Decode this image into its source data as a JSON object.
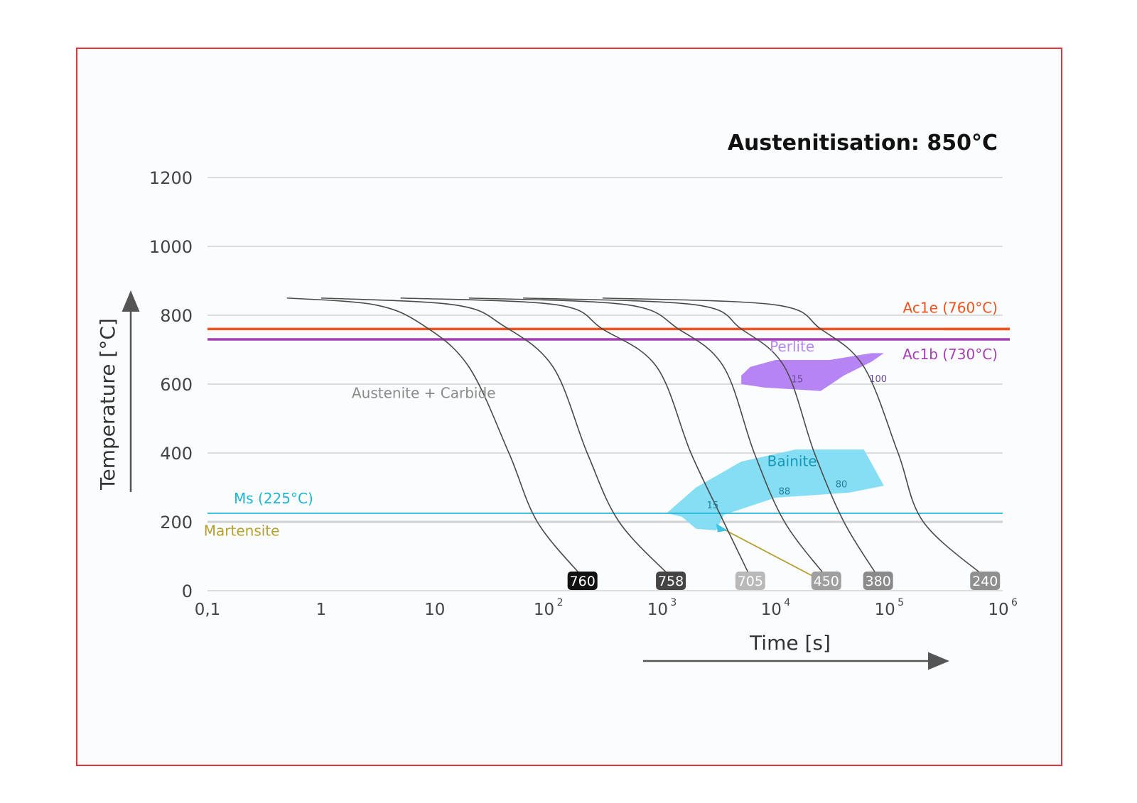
{
  "chart_data": {
    "type": "line",
    "subtype": "CCT diagram (continuous cooling transformation)",
    "title": "Austenitisation: 850°C",
    "xlabel": "Time [s]",
    "ylabel": "Temperature [°C]",
    "xscale": "log",
    "xlim": [
      0.1,
      1000000
    ],
    "ylim": [
      0,
      1200
    ],
    "xticks": [
      {
        "value": 0.1,
        "base": "0,1",
        "exp": ""
      },
      {
        "value": 1,
        "base": "1",
        "exp": ""
      },
      {
        "value": 10,
        "base": "10",
        "exp": ""
      },
      {
        "value": 100,
        "base": "10",
        "exp": "2"
      },
      {
        "value": 1000,
        "base": "10",
        "exp": "3"
      },
      {
        "value": 10000,
        "base": "10",
        "exp": "4"
      },
      {
        "value": 100000,
        "base": "10",
        "exp": "5"
      },
      {
        "value": 1000000,
        "base": "10",
        "exp": "6"
      }
    ],
    "yticks": [
      {
        "value": 0,
        "label": "0"
      },
      {
        "value": 200,
        "label": "200"
      },
      {
        "value": 400,
        "label": "400"
      },
      {
        "value": 600,
        "label": "600"
      },
      {
        "value": 800,
        "label": "800"
      },
      {
        "value": 1000,
        "label": "1000"
      },
      {
        "value": 1200,
        "label": "1200"
      }
    ],
    "grid": true,
    "reference_lines": [
      {
        "name": "Ac1e (760°C)",
        "y": 760,
        "color": "#f0531e"
      },
      {
        "name": "Ac1b (730°C)",
        "y": 730,
        "color": "#a63fb4"
      },
      {
        "name": "Ms (225°C)",
        "y": 225,
        "color": "#1fb6d6"
      }
    ],
    "region_labels": [
      {
        "text": "Austenite + Carbide",
        "x": 8,
        "y": 560,
        "color": "#8a8a8a"
      },
      {
        "text": "Martensite",
        "x": 0.2,
        "y": 160,
        "color": "#b5a032"
      },
      {
        "text": "Perlite",
        "x": 14000,
        "y": 695,
        "color": "#b788ee"
      },
      {
        "text": "Bainite",
        "x": 14000,
        "y": 362,
        "color": "#1597b5"
      }
    ],
    "phase_fields": [
      {
        "name": "Perlite",
        "color": "#b27ef2",
        "points": [
          [
            5000,
            625
          ],
          [
            6000,
            650
          ],
          [
            10000,
            670
          ],
          [
            30000,
            670
          ],
          [
            70000,
            690
          ],
          [
            90000,
            690
          ],
          [
            70000,
            665
          ],
          [
            40000,
            625
          ],
          [
            25000,
            580
          ],
          [
            8000,
            590
          ],
          [
            5000,
            600
          ]
        ],
        "marks": [
          {
            "text": "15",
            "x": 15500,
            "y": 615
          },
          {
            "text": "100",
            "x": 80000,
            "y": 617
          }
        ]
      },
      {
        "name": "Bainite",
        "color": "#7fdcf3",
        "points": [
          [
            1100,
            225
          ],
          [
            2000,
            300
          ],
          [
            5000,
            375
          ],
          [
            15000,
            410
          ],
          [
            60000,
            410
          ],
          [
            90000,
            305
          ],
          [
            45000,
            285
          ],
          [
            10000,
            270
          ],
          [
            3500,
            220
          ],
          [
            3000,
            175
          ],
          [
            2000,
            180
          ],
          [
            1500,
            215
          ]
        ],
        "marks": [
          {
            "text": "15",
            "x": 2800,
            "y": 250
          },
          {
            "text": "88",
            "x": 12000,
            "y": 290
          },
          {
            "text": "80",
            "x": 38000,
            "y": 310
          }
        ]
      }
    ],
    "series": [
      {
        "name": "760",
        "points": [
          [
            0.5,
            850
          ],
          [
            3,
            830
          ],
          [
            8,
            770
          ],
          [
            20,
            650
          ],
          [
            45,
            400
          ],
          [
            80,
            200
          ],
          [
            200,
            40
          ]
        ]
      },
      {
        "name": "758",
        "points": [
          [
            1,
            850
          ],
          [
            15,
            830
          ],
          [
            40,
            770
          ],
          [
            110,
            650
          ],
          [
            220,
            400
          ],
          [
            420,
            200
          ],
          [
            1200,
            40
          ]
        ]
      },
      {
        "name": "705",
        "points": [
          [
            5,
            850
          ],
          [
            120,
            830
          ],
          [
            300,
            760
          ],
          [
            900,
            650
          ],
          [
            1800,
            400
          ],
          [
            3500,
            200
          ],
          [
            6000,
            40
          ]
        ]
      },
      {
        "name": "450",
        "points": [
          [
            20,
            850
          ],
          [
            500,
            830
          ],
          [
            1400,
            760
          ],
          [
            3500,
            650
          ],
          [
            6500,
            400
          ],
          [
            12000,
            200
          ],
          [
            28000,
            40
          ]
        ]
      },
      {
        "name": "380",
        "points": [
          [
            60,
            850
          ],
          [
            2000,
            830
          ],
          [
            5000,
            760
          ],
          [
            12000,
            650
          ],
          [
            22000,
            400
          ],
          [
            40000,
            200
          ],
          [
            80000,
            40
          ]
        ]
      },
      {
        "name": "240",
        "points": [
          [
            300,
            850
          ],
          [
            10000,
            830
          ],
          [
            25000,
            760
          ],
          [
            60000,
            650
          ],
          [
            120000,
            400
          ],
          [
            200000,
            200
          ],
          [
            700000,
            40
          ]
        ]
      }
    ],
    "end_label_x": [
      200,
      1200,
      6000,
      28000,
      80000,
      700000
    ],
    "end_label_colors": [
      "#111111",
      "#444444",
      "#b9b9b9",
      "#9f9f9f",
      "#8a8a8a",
      "#8f8f8f"
    ],
    "martensite_path": {
      "points": [
        [
          3200,
          185
        ],
        [
          22000,
          40
        ]
      ],
      "color": "#b5a032"
    }
  }
}
